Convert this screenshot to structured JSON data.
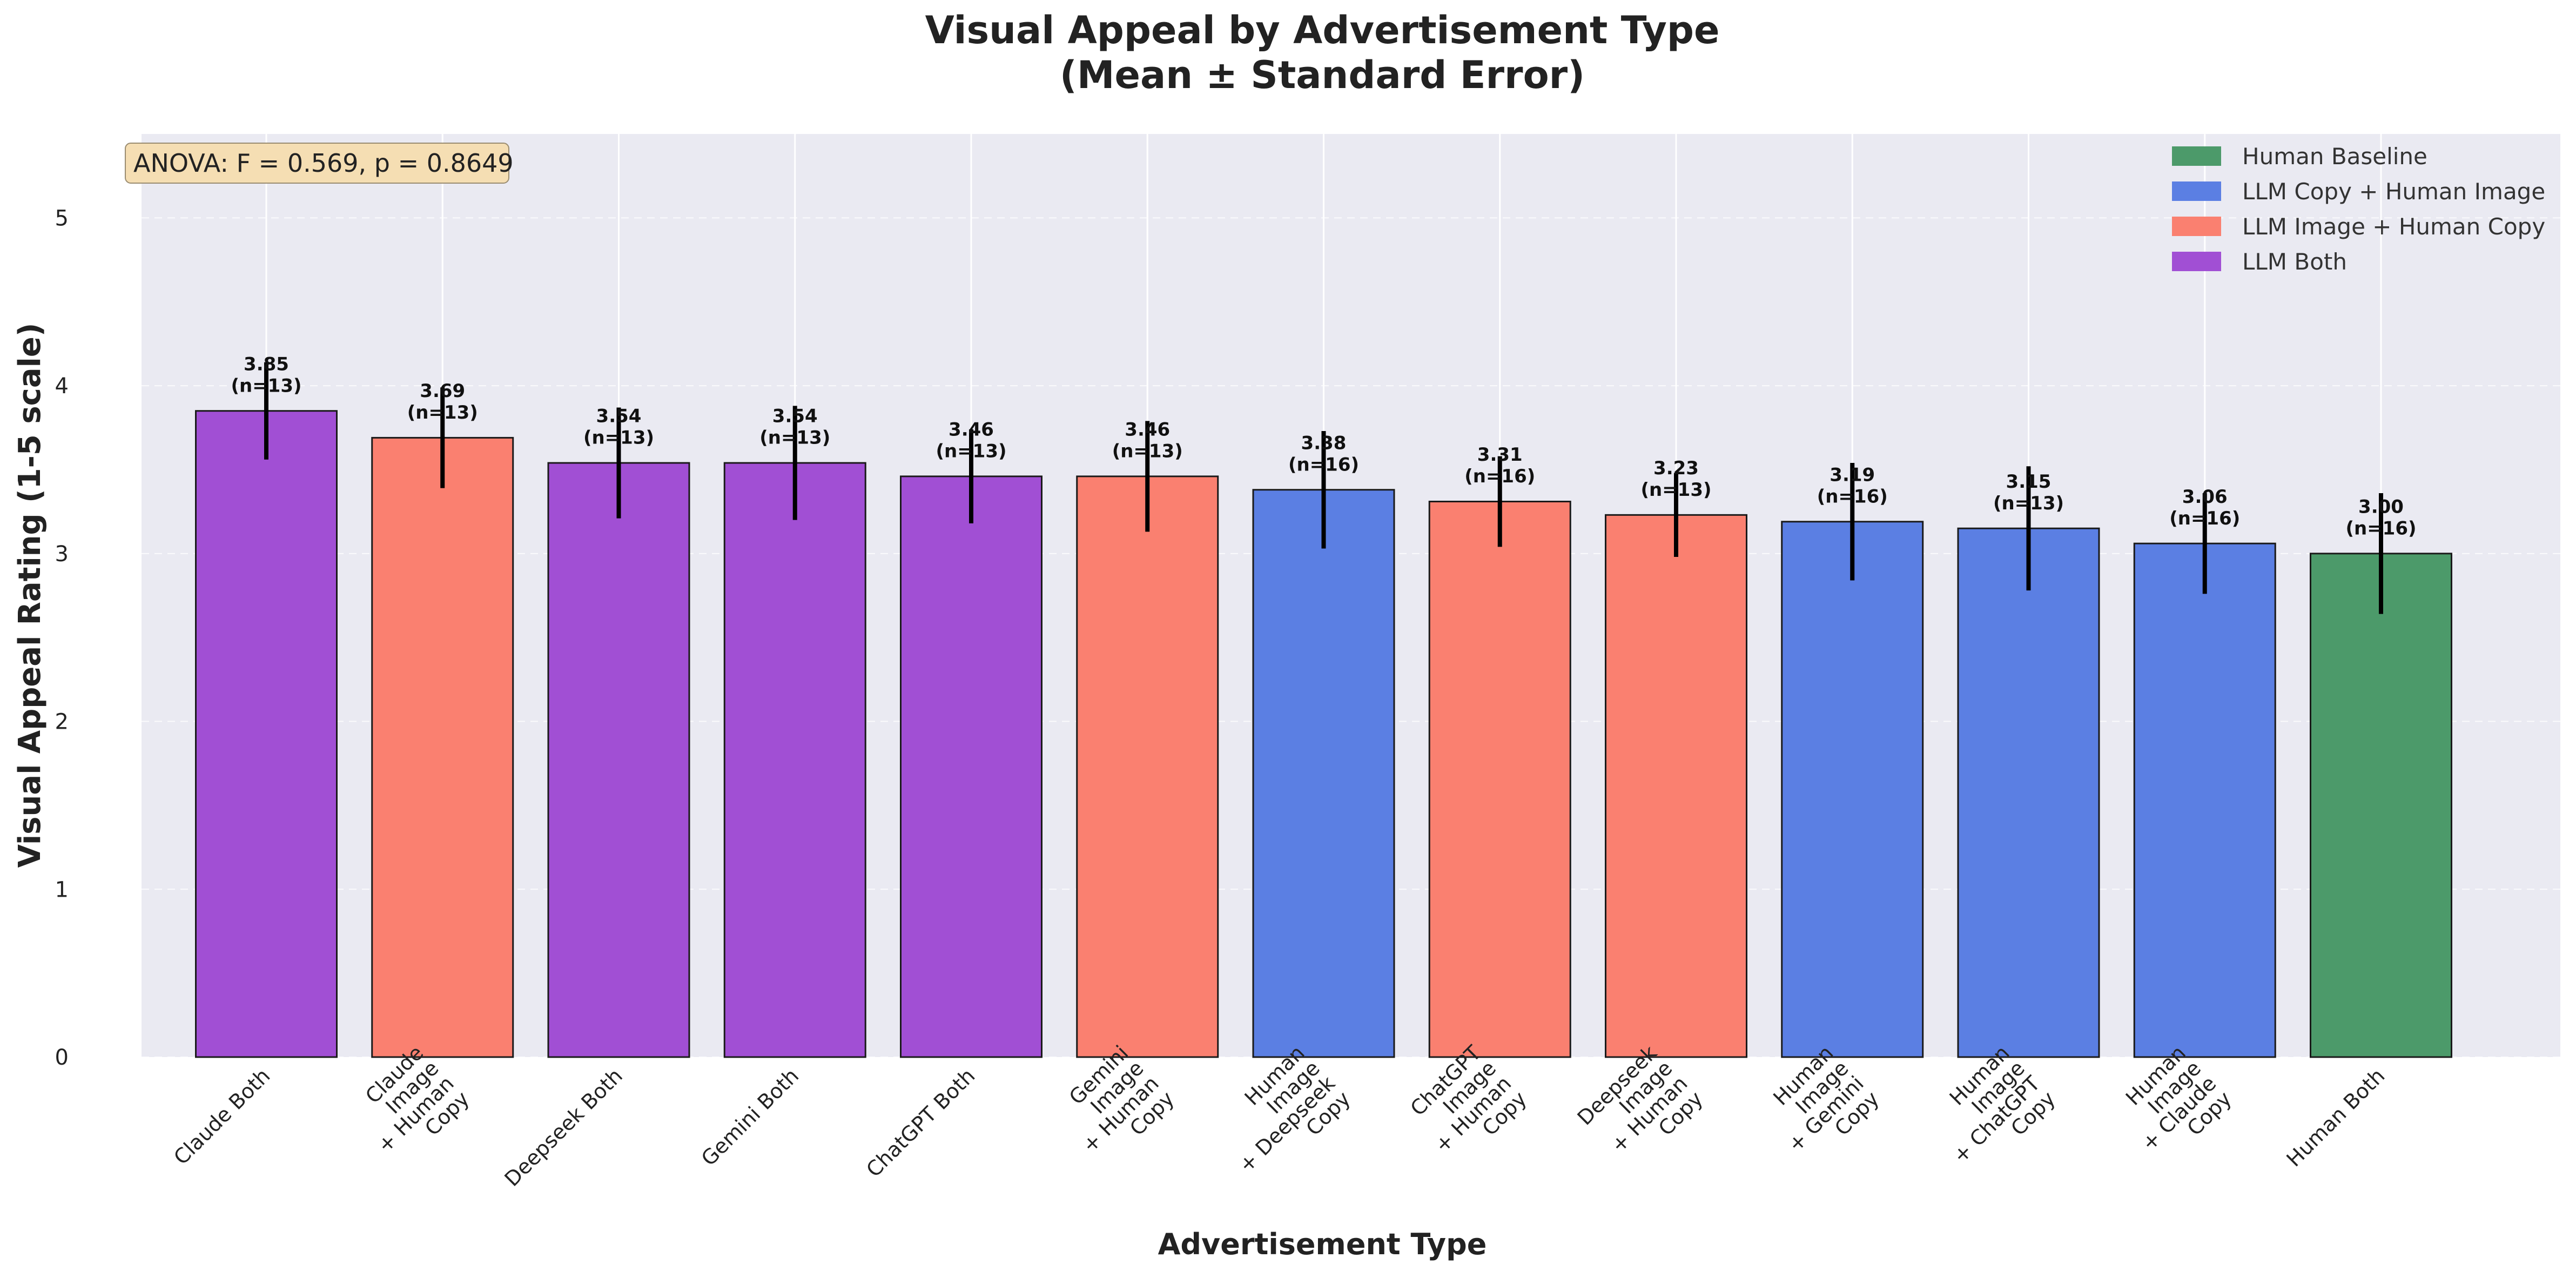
{
  "chart_data": {
    "type": "bar",
    "title_line1": "Visual Appeal by Advertisement Type",
    "title_line2": "(Mean ± Standard Error)",
    "xlabel": "Advertisement Type",
    "ylabel": "Visual Appeal Rating (1-5 scale)",
    "ylim": [
      0,
      5.5
    ],
    "yticks": [
      0,
      1,
      2,
      3,
      4,
      5
    ],
    "grid": true,
    "legend_position": "top-right",
    "annotation": "ANOVA: F = 0.569, p = 0.8649",
    "groups": [
      {
        "name": "Human Baseline",
        "color": "#4c9a6a"
      },
      {
        "name": "LLM Copy + Human Image",
        "color": "#5b7fe3"
      },
      {
        "name": "LLM Image + Human Copy",
        "color": "#fa8070"
      },
      {
        "name": "LLM Both",
        "color": "#a14fd4"
      }
    ],
    "bars": [
      {
        "label": [
          "Claude Both"
        ],
        "value": 3.85,
        "value_text": "3.85",
        "n_text": "(n=13)",
        "se": 0.29,
        "group": 3
      },
      {
        "label": [
          "Claude",
          "Image",
          "+ Human",
          "Copy"
        ],
        "value": 3.69,
        "value_text": "3.69",
        "n_text": "(n=13)",
        "se": 0.3,
        "group": 2
      },
      {
        "label": [
          "Deepseek Both"
        ],
        "value": 3.54,
        "value_text": "3.54",
        "n_text": "(n=13)",
        "se": 0.33,
        "group": 3
      },
      {
        "label": [
          "Gemini Both"
        ],
        "value": 3.54,
        "value_text": "3.54",
        "n_text": "(n=13)",
        "se": 0.34,
        "group": 3
      },
      {
        "label": [
          "ChatGPT Both"
        ],
        "value": 3.46,
        "value_text": "3.46",
        "n_text": "(n=13)",
        "se": 0.28,
        "group": 3
      },
      {
        "label": [
          "Gemini",
          "Image",
          "+ Human",
          "Copy"
        ],
        "value": 3.46,
        "value_text": "3.46",
        "n_text": "(n=13)",
        "se": 0.33,
        "group": 2
      },
      {
        "label": [
          "Human",
          "Image",
          "+ Deepseek",
          "Copy"
        ],
        "value": 3.38,
        "value_text": "3.38",
        "n_text": "(n=16)",
        "se": 0.35,
        "group": 1
      },
      {
        "label": [
          "ChatGPT",
          "Image",
          "+ Human",
          "Copy"
        ],
        "value": 3.31,
        "value_text": "3.31",
        "n_text": "(n=16)",
        "se": 0.27,
        "group": 2
      },
      {
        "label": [
          "Deepseek",
          "Image",
          "+ Human",
          "Copy"
        ],
        "value": 3.23,
        "value_text": "3.23",
        "n_text": "(n=13)",
        "se": 0.25,
        "group": 2
      },
      {
        "label": [
          "Human",
          "Image",
          "+ Gemini",
          "Copy"
        ],
        "value": 3.19,
        "value_text": "3.19",
        "n_text": "(n=16)",
        "se": 0.35,
        "group": 1
      },
      {
        "label": [
          "Human",
          "Image",
          "+ ChatGPT",
          "Copy"
        ],
        "value": 3.15,
        "value_text": "3.15",
        "n_text": "(n=13)",
        "se": 0.37,
        "group": 1
      },
      {
        "label": [
          "Human",
          "Image",
          "+ Claude",
          "Copy"
        ],
        "value": 3.06,
        "value_text": "3.06",
        "n_text": "(n=16)",
        "se": 0.3,
        "group": 1
      },
      {
        "label": [
          "Human Both"
        ],
        "value": 3.0,
        "value_text": "3.00",
        "n_text": "(n=16)",
        "se": 0.36,
        "group": 0
      }
    ]
  }
}
